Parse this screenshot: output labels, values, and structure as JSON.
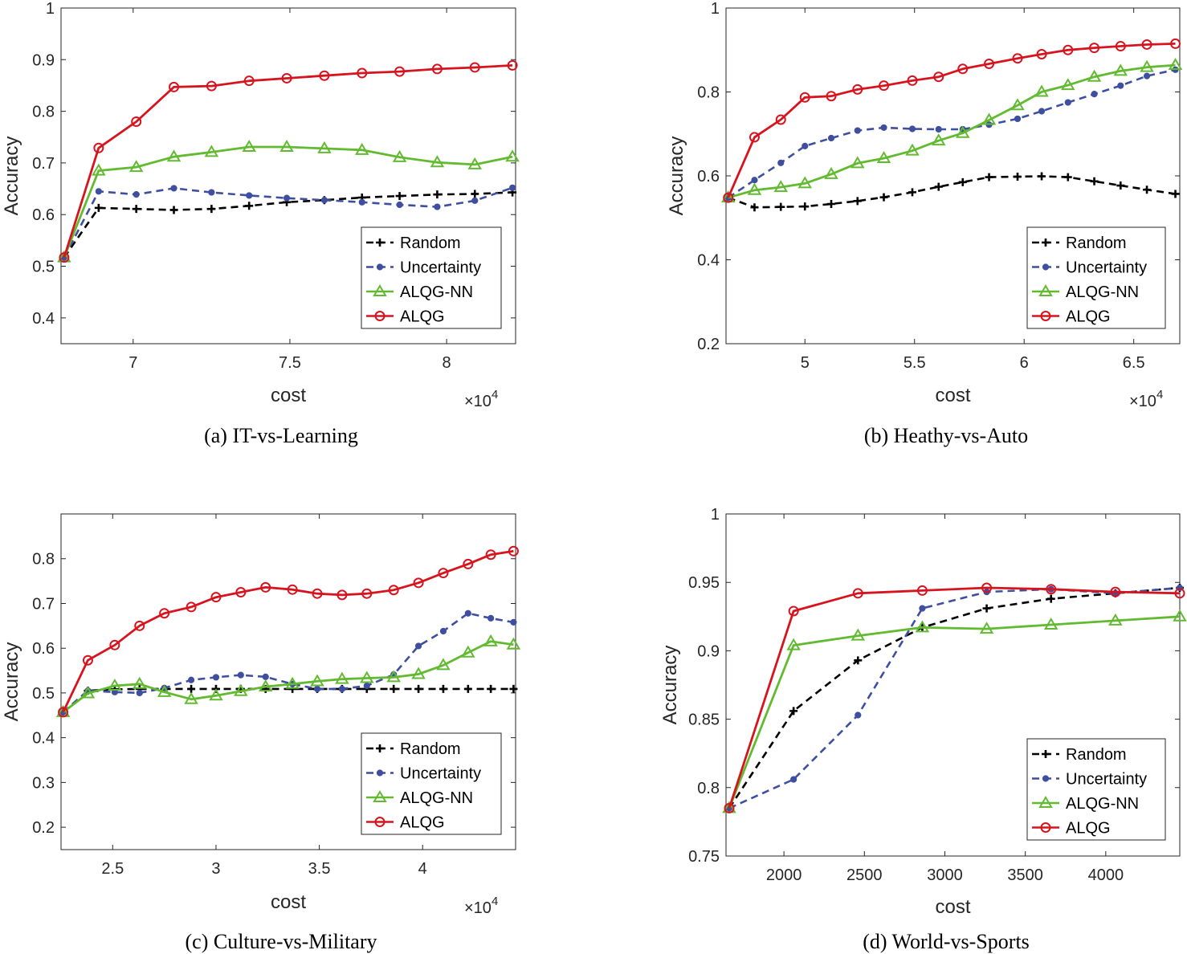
{
  "chart_data": [
    {
      "type": "line",
      "caption": "(a) IT-vs-Learning",
      "xlabel": "cost",
      "ylabel": "Accuracy",
      "exponent": "×10",
      "exponent_power": "4",
      "xlim": [
        6.77,
        8.22
      ],
      "ylim": [
        0.35,
        1.0
      ],
      "xticks": [
        7,
        7.5,
        8
      ],
      "xticklabels": [
        "7",
        "7.5",
        "8"
      ],
      "yticks": [
        0.4,
        0.5,
        0.6,
        0.7,
        0.8,
        0.9,
        1.0
      ],
      "yticklabels": [
        "0.4",
        "0.5",
        "0.6",
        "0.7",
        "0.8",
        "0.9",
        "1"
      ],
      "legend": "bottom-right",
      "x": [
        6.78,
        6.89,
        7.01,
        7.13,
        7.25,
        7.37,
        7.49,
        7.61,
        7.73,
        7.85,
        7.97,
        8.09,
        8.21
      ],
      "series": [
        {
          "name": "Random",
          "values": [
            0.517,
            0.613,
            0.611,
            0.609,
            0.611,
            0.617,
            0.624,
            0.628,
            0.633,
            0.636,
            0.639,
            0.64,
            0.643
          ]
        },
        {
          "name": "Uncertainty",
          "values": [
            0.517,
            0.645,
            0.639,
            0.651,
            0.643,
            0.637,
            0.632,
            0.628,
            0.624,
            0.619,
            0.615,
            0.627,
            0.652
          ]
        },
        {
          "name": "ALQG-NN",
          "values": [
            0.517,
            0.685,
            0.692,
            0.712,
            0.721,
            0.731,
            0.731,
            0.728,
            0.725,
            0.711,
            0.701,
            0.697,
            0.712
          ]
        },
        {
          "name": "ALQG",
          "values": [
            0.517,
            0.729,
            0.78,
            0.847,
            0.849,
            0.859,
            0.864,
            0.869,
            0.874,
            0.877,
            0.882,
            0.885,
            0.889
          ]
        }
      ]
    },
    {
      "type": "line",
      "caption": "(b) Heathy-vs-Auto",
      "xlabel": "cost",
      "ylabel": "Accuracy",
      "exponent": "×10",
      "exponent_power": "4",
      "xlim": [
        4.64,
        6.71
      ],
      "ylim": [
        0.2,
        1.0
      ],
      "xticks": [
        5,
        5.5,
        6,
        6.5
      ],
      "xticklabels": [
        "5",
        "5.5",
        "6",
        "6.5"
      ],
      "yticks": [
        0.2,
        0.4,
        0.6,
        0.8,
        1.0
      ],
      "yticklabels": [
        "0.2",
        "0.4",
        "0.6",
        "0.8",
        "1"
      ],
      "legend": "bottom-right",
      "x": [
        4.65,
        4.77,
        4.89,
        5.0,
        5.12,
        5.24,
        5.36,
        5.49,
        5.61,
        5.72,
        5.84,
        5.97,
        6.08,
        6.2,
        6.32,
        6.44,
        6.56,
        6.69
      ],
      "series": [
        {
          "name": "Random",
          "values": [
            0.548,
            0.525,
            0.526,
            0.527,
            0.533,
            0.54,
            0.549,
            0.561,
            0.574,
            0.585,
            0.597,
            0.598,
            0.599,
            0.597,
            0.587,
            0.577,
            0.567,
            0.557
          ]
        },
        {
          "name": "Uncertainty",
          "values": [
            0.548,
            0.59,
            0.631,
            0.671,
            0.69,
            0.708,
            0.715,
            0.712,
            0.711,
            0.711,
            0.722,
            0.736,
            0.754,
            0.775,
            0.795,
            0.815,
            0.838,
            0.853
          ]
        },
        {
          "name": "ALQG-NN",
          "values": [
            0.548,
            0.566,
            0.573,
            0.582,
            0.604,
            0.63,
            0.642,
            0.66,
            0.684,
            0.702,
            0.733,
            0.768,
            0.8,
            0.816,
            0.836,
            0.85,
            0.859,
            0.864
          ]
        },
        {
          "name": "ALQG",
          "values": [
            0.548,
            0.692,
            0.734,
            0.787,
            0.79,
            0.806,
            0.815,
            0.827,
            0.836,
            0.855,
            0.867,
            0.88,
            0.89,
            0.9,
            0.905,
            0.909,
            0.913,
            0.915
          ]
        }
      ]
    },
    {
      "type": "line",
      "caption": "(c) Culture-vs-Military",
      "xlabel": "cost",
      "ylabel": "Accuracy",
      "exponent": "×10",
      "exponent_power": "4",
      "xlim": [
        2.25,
        4.45
      ],
      "ylim": [
        0.15,
        0.9
      ],
      "xticks": [
        2.5,
        3,
        3.5,
        4
      ],
      "xticklabels": [
        "2.5",
        "3",
        "3.5",
        "4"
      ],
      "yticks": [
        0.2,
        0.3,
        0.4,
        0.5,
        0.6,
        0.7,
        0.8
      ],
      "yticklabels": [
        "0.2",
        "0.3",
        "0.4",
        "0.5",
        "0.6",
        "0.7",
        "0.8"
      ],
      "legend": "bottom-right",
      "x": [
        2.26,
        2.38,
        2.51,
        2.63,
        2.75,
        2.88,
        3.0,
        3.12,
        3.24,
        3.37,
        3.49,
        3.61,
        3.73,
        3.86,
        3.98,
        4.1,
        4.22,
        4.33,
        4.44
      ],
      "series": [
        {
          "name": "Random",
          "values": [
            0.457,
            0.505,
            0.508,
            0.509,
            0.509,
            0.509,
            0.509,
            0.509,
            0.509,
            0.509,
            0.509,
            0.509,
            0.509,
            0.509,
            0.509,
            0.509,
            0.509,
            0.509,
            0.509
          ]
        },
        {
          "name": "Uncertainty",
          "values": [
            0.457,
            0.505,
            0.502,
            0.5,
            0.511,
            0.529,
            0.535,
            0.54,
            0.536,
            0.52,
            0.509,
            0.509,
            0.516,
            0.541,
            0.605,
            0.638,
            0.678,
            0.667,
            0.658
          ]
        },
        {
          "name": "ALQG-NN",
          "values": [
            0.457,
            0.499,
            0.516,
            0.52,
            0.502,
            0.486,
            0.494,
            0.504,
            0.514,
            0.52,
            0.526,
            0.531,
            0.533,
            0.535,
            0.542,
            0.562,
            0.59,
            0.615,
            0.608
          ]
        },
        {
          "name": "ALQG",
          "values": [
            0.457,
            0.573,
            0.607,
            0.65,
            0.678,
            0.692,
            0.714,
            0.725,
            0.736,
            0.731,
            0.722,
            0.719,
            0.722,
            0.73,
            0.746,
            0.768,
            0.788,
            0.809,
            0.817
          ]
        }
      ]
    },
    {
      "type": "line",
      "caption": "(d) World-vs-Sports",
      "xlabel": "cost",
      "ylabel": "Accuracy",
      "exponent": "",
      "exponent_power": "",
      "xlim": [
        1640,
        4460
      ],
      "ylim": [
        0.75,
        1.0
      ],
      "xticks": [
        2000,
        2500,
        3000,
        3500,
        4000
      ],
      "xticklabels": [
        "2000",
        "2500",
        "3000",
        "3500",
        "4000"
      ],
      "yticks": [
        0.75,
        0.8,
        0.85,
        0.9,
        0.95,
        1.0
      ],
      "yticklabels": [
        "0.75",
        "0.8",
        "0.85",
        "0.9",
        "0.95",
        "1"
      ],
      "legend": "bottom-right",
      "x": [
        1660,
        2060,
        2460,
        2860,
        3260,
        3660,
        4060,
        4460
      ],
      "series": [
        {
          "name": "Random",
          "values": [
            0.785,
            0.856,
            0.893,
            0.917,
            0.931,
            0.938,
            0.942,
            0.946
          ]
        },
        {
          "name": "Uncertainty",
          "values": [
            0.785,
            0.806,
            0.853,
            0.931,
            0.943,
            0.945,
            0.942,
            0.946
          ]
        },
        {
          "name": "ALQG-NN",
          "values": [
            0.785,
            0.904,
            0.911,
            0.917,
            0.916,
            0.919,
            0.922,
            0.925
          ]
        },
        {
          "name": "ALQG",
          "values": [
            0.785,
            0.929,
            0.942,
            0.944,
            0.946,
            0.945,
            0.943,
            0.942
          ]
        }
      ]
    }
  ],
  "series_styles": [
    {
      "name": "Random",
      "color": "#000000",
      "dash": "dashed",
      "marker": "plus"
    },
    {
      "name": "Uncertainty",
      "color": "#3f4fa0",
      "dash": "dashed",
      "marker": "dot"
    },
    {
      "name": "ALQG-NN",
      "color": "#62ba30",
      "dash": "solid",
      "marker": "triangle"
    },
    {
      "name": "ALQG",
      "color": "#d7141e",
      "dash": "solid",
      "marker": "circle"
    }
  ]
}
